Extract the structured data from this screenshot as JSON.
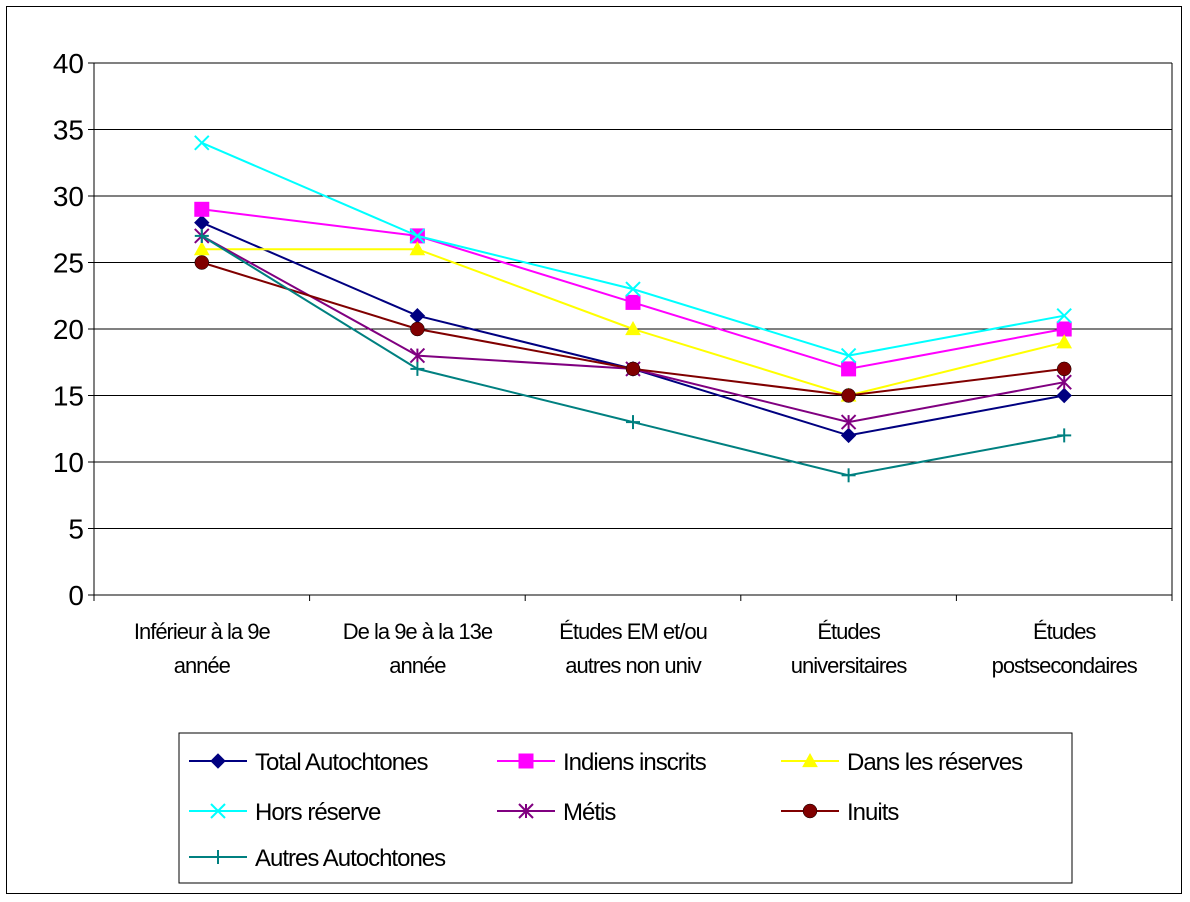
{
  "chart_data": {
    "type": "line",
    "title": "",
    "xlabel": "",
    "ylabel": "",
    "ylim": [
      0,
      40
    ],
    "yticks": [
      0,
      5,
      10,
      15,
      20,
      25,
      30,
      35,
      40
    ],
    "ytick_labels": [
      "0",
      "5",
      "10",
      "15",
      "20",
      "25",
      "30",
      "35",
      "40"
    ],
    "grid": "horizontal",
    "legend_position": "bottom",
    "categories": [
      [
        "Inférieur à la 9e",
        "année"
      ],
      [
        "De la 9e à la 13e",
        "année"
      ],
      [
        "Études EM et/ou",
        "autres non univ"
      ],
      [
        "Études",
        "universitaires"
      ],
      [
        "Études",
        "postsecondaires"
      ]
    ],
    "series": [
      {
        "name": "Total Autochtones",
        "color": "#000080",
        "marker": "diamond",
        "values": [
          28,
          21,
          17,
          12,
          15
        ]
      },
      {
        "name": "Indiens inscrits",
        "color": "#FF00FF",
        "marker": "square",
        "values": [
          29,
          27,
          22,
          17,
          20
        ]
      },
      {
        "name": "Dans les réserves",
        "color": "#FFFF00",
        "marker": "triangle",
        "values": [
          26,
          26,
          20,
          15,
          19
        ]
      },
      {
        "name": "Hors réserve",
        "color": "#00FFFF",
        "marker": "x",
        "values": [
          34,
          27,
          23,
          18,
          21
        ]
      },
      {
        "name": "Métis",
        "color": "#800080",
        "marker": "star",
        "values": [
          27,
          18,
          17,
          13,
          16
        ]
      },
      {
        "name": "Inuits",
        "color": "#800000",
        "marker": "circle",
        "values": [
          25,
          20,
          17,
          15,
          17
        ]
      },
      {
        "name": "Autres Autochtones",
        "color": "#008080",
        "marker": "plus",
        "values": [
          27,
          17,
          13,
          9,
          12
        ]
      }
    ]
  }
}
